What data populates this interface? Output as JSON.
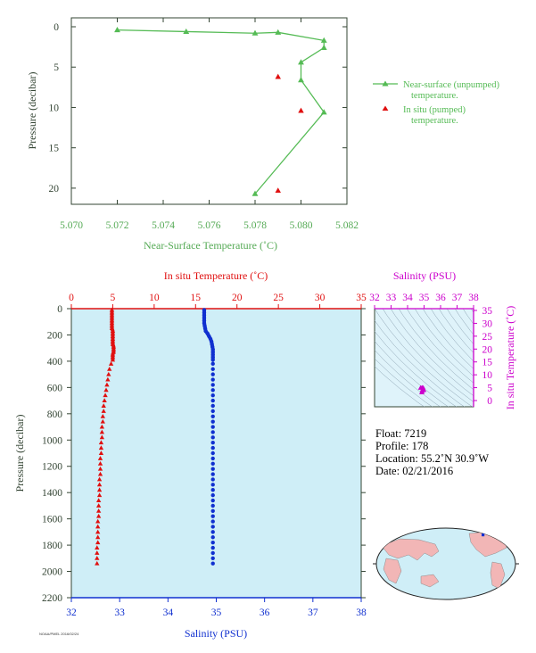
{
  "colors": {
    "green": "#55bb55",
    "red": "#e01010",
    "blue": "#1030d0",
    "magenta": "#cc00cc",
    "panel_fill": "#cfeef7",
    "ts_fill": "#dff3fa",
    "label_green": "#55aa55",
    "dark_green": "#334433",
    "land": "#f2b6b6"
  },
  "top_chart": {
    "ylabel": "Pressure (decibar)",
    "xlabel": "Near-Surface Temperature (˚C)",
    "xlim": [
      5.07,
      5.082
    ],
    "ylim": [
      0,
      22
    ],
    "xticks": [
      "5.070",
      "5.072",
      "5.074",
      "5.076",
      "5.078",
      "5.080",
      "5.082"
    ],
    "xtick_values": [
      5.07,
      5.072,
      5.074,
      5.076,
      5.078,
      5.08,
      5.082
    ],
    "yticks": [
      "0",
      "5",
      "10",
      "15",
      "20"
    ],
    "ytick_values": [
      0,
      5,
      10,
      15,
      20
    ],
    "legend": {
      "line_label_1": "Near-surface (unpumped)",
      "line_label_2": "temperature.",
      "point_label_1": "In situ (pumped)",
      "point_label_2": "temperature."
    }
  },
  "bottom_chart": {
    "ylabel": "Pressure (decibar)",
    "top_xlabel": "In situ Temperature (˚C)",
    "bottom_xlabel": "Salinity (PSU)",
    "temp_ticks": [
      "0",
      "5",
      "10",
      "15",
      "20",
      "25",
      "30",
      "35"
    ],
    "temp_values": [
      0,
      5,
      10,
      15,
      20,
      25,
      30,
      35
    ],
    "sal_ticks": [
      "32",
      "33",
      "34",
      "35",
      "36",
      "37",
      "38"
    ],
    "sal_values": [
      32,
      33,
      34,
      35,
      36,
      37,
      38
    ],
    "pres_ticks": [
      "0",
      "200",
      "400",
      "600",
      "800",
      "1000",
      "1200",
      "1400",
      "1600",
      "1800",
      "2000",
      "2200"
    ],
    "pres_values": [
      0,
      200,
      400,
      600,
      800,
      1000,
      1200,
      1400,
      1600,
      1800,
      2000,
      2200
    ],
    "tlim": [
      0,
      35
    ],
    "slim": [
      32,
      38
    ],
    "plim": [
      0,
      2200
    ]
  },
  "ts_chart": {
    "title": "Salinity (PSU)",
    "ylabel": "In situ Temperature (˚C)",
    "sal_ticks": [
      "32",
      "33",
      "34",
      "35",
      "36",
      "37",
      "38"
    ],
    "sal_values": [
      32,
      33,
      34,
      35,
      36,
      37,
      38
    ],
    "temp_ticks": [
      "0",
      "5",
      "10",
      "15",
      "20",
      "25",
      "30",
      "35"
    ],
    "temp_values": [
      0,
      5,
      10,
      15,
      20,
      25,
      30,
      35
    ],
    "slim": [
      32,
      38
    ],
    "tlim": [
      0,
      35
    ]
  },
  "info": {
    "float": "Float:  7219",
    "profile": "Profile:  178",
    "location": "Location:  55.2˚N  30.9˚W",
    "date": "Date:  02/21/2016"
  },
  "footer_note": "NOAA/PMEL 2016/02/24",
  "chart_data": [
    {
      "type": "line",
      "name": "Near-surface temperature profile",
      "x_unit": "˚C",
      "y_unit": "decibar",
      "series": [
        {
          "name": "Near-surface (unpumped) temperature.",
          "marker": "triangle-line",
          "points": [
            [
              5.072,
              0.4
            ],
            [
              5.075,
              0.6
            ],
            [
              5.078,
              0.8
            ],
            [
              5.079,
              0.7
            ],
            [
              5.081,
              1.7
            ],
            [
              5.081,
              2.6
            ],
            [
              5.08,
              4.4
            ],
            [
              5.08,
              6.6
            ],
            [
              5.081,
              10.6
            ],
            [
              5.078,
              20.7
            ]
          ]
        },
        {
          "name": "In situ (pumped) temperature.",
          "marker": "triangle",
          "points": [
            [
              5.079,
              6.2
            ],
            [
              5.08,
              10.4
            ],
            [
              5.079,
              20.3
            ]
          ]
        }
      ]
    },
    {
      "type": "scatter",
      "name": "In situ temperature vs pressure",
      "x_unit": "˚C",
      "y_unit": "decibar",
      "points": [
        [
          4.9,
          10
        ],
        [
          4.9,
          30
        ],
        [
          4.9,
          50
        ],
        [
          4.9,
          70
        ],
        [
          4.9,
          90
        ],
        [
          4.9,
          110
        ],
        [
          4.9,
          130
        ],
        [
          4.9,
          150
        ],
        [
          5.0,
          170
        ],
        [
          5.0,
          190
        ],
        [
          5.0,
          210
        ],
        [
          5.0,
          230
        ],
        [
          5.0,
          250
        ],
        [
          5.0,
          270
        ],
        [
          5.1,
          290
        ],
        [
          5.1,
          310
        ],
        [
          5.1,
          330
        ],
        [
          5.0,
          350
        ],
        [
          5.0,
          370
        ],
        [
          5.0,
          390
        ],
        [
          4.8,
          420
        ],
        [
          4.6,
          460
        ],
        [
          4.5,
          500
        ],
        [
          4.4,
          540
        ],
        [
          4.3,
          580
        ],
        [
          4.2,
          620
        ],
        [
          4.1,
          660
        ],
        [
          4.0,
          700
        ],
        [
          3.9,
          740
        ],
        [
          3.9,
          780
        ],
        [
          3.8,
          820
        ],
        [
          3.8,
          860
        ],
        [
          3.7,
          900
        ],
        [
          3.7,
          940
        ],
        [
          3.7,
          980
        ],
        [
          3.6,
          1020
        ],
        [
          3.6,
          1060
        ],
        [
          3.6,
          1100
        ],
        [
          3.5,
          1140
        ],
        [
          3.5,
          1180
        ],
        [
          3.5,
          1220
        ],
        [
          3.5,
          1260
        ],
        [
          3.4,
          1300
        ],
        [
          3.4,
          1340
        ],
        [
          3.4,
          1380
        ],
        [
          3.4,
          1420
        ],
        [
          3.3,
          1460
        ],
        [
          3.3,
          1500
        ],
        [
          3.3,
          1540
        ],
        [
          3.3,
          1580
        ],
        [
          3.2,
          1620
        ],
        [
          3.2,
          1660
        ],
        [
          3.2,
          1700
        ],
        [
          3.2,
          1740
        ],
        [
          3.2,
          1780
        ],
        [
          3.1,
          1820
        ],
        [
          3.1,
          1860
        ],
        [
          3.1,
          1900
        ],
        [
          3.1,
          1940
        ]
      ]
    },
    {
      "type": "scatter",
      "name": "Salinity vs pressure",
      "x_unit": "PSU",
      "y_unit": "decibar",
      "points": [
        [
          34.75,
          10
        ],
        [
          34.75,
          30
        ],
        [
          34.75,
          50
        ],
        [
          34.75,
          70
        ],
        [
          34.75,
          90
        ],
        [
          34.75,
          110
        ],
        [
          34.76,
          130
        ],
        [
          34.77,
          150
        ],
        [
          34.78,
          170
        ],
        [
          34.82,
          190
        ],
        [
          34.85,
          210
        ],
        [
          34.88,
          230
        ],
        [
          34.9,
          250
        ],
        [
          34.91,
          270
        ],
        [
          34.92,
          290
        ],
        [
          34.93,
          310
        ],
        [
          34.93,
          330
        ],
        [
          34.93,
          350
        ],
        [
          34.93,
          370
        ],
        [
          34.93,
          390
        ],
        [
          34.93,
          420
        ],
        [
          34.93,
          460
        ],
        [
          34.93,
          500
        ],
        [
          34.93,
          540
        ],
        [
          34.93,
          580
        ],
        [
          34.93,
          620
        ],
        [
          34.93,
          660
        ],
        [
          34.93,
          700
        ],
        [
          34.93,
          740
        ],
        [
          34.93,
          780
        ],
        [
          34.93,
          820
        ],
        [
          34.93,
          860
        ],
        [
          34.93,
          900
        ],
        [
          34.93,
          940
        ],
        [
          34.93,
          980
        ],
        [
          34.93,
          1020
        ],
        [
          34.93,
          1060
        ],
        [
          34.93,
          1100
        ],
        [
          34.93,
          1140
        ],
        [
          34.93,
          1180
        ],
        [
          34.93,
          1220
        ],
        [
          34.93,
          1260
        ],
        [
          34.93,
          1300
        ],
        [
          34.93,
          1340
        ],
        [
          34.93,
          1380
        ],
        [
          34.93,
          1420
        ],
        [
          34.93,
          1460
        ],
        [
          34.93,
          1500
        ],
        [
          34.93,
          1540
        ],
        [
          34.93,
          1580
        ],
        [
          34.93,
          1620
        ],
        [
          34.93,
          1660
        ],
        [
          34.93,
          1700
        ],
        [
          34.93,
          1740
        ],
        [
          34.93,
          1780
        ],
        [
          34.93,
          1820
        ],
        [
          34.93,
          1860
        ],
        [
          34.93,
          1900
        ],
        [
          34.93,
          1940
        ]
      ]
    },
    {
      "type": "scatter",
      "name": "T-S diagram",
      "x_unit": "PSU",
      "y_unit": "˚C",
      "points": [
        [
          34.85,
          3.1
        ],
        [
          34.87,
          3.5
        ],
        [
          34.88,
          3.9
        ],
        [
          34.9,
          4.2
        ],
        [
          34.92,
          4.5
        ],
        [
          34.93,
          4.8
        ],
        [
          34.95,
          5.0
        ],
        [
          34.88,
          5.1
        ],
        [
          34.8,
          5.0
        ],
        [
          34.78,
          4.9
        ],
        [
          34.9,
          3.3
        ],
        [
          35.0,
          4.0
        ]
      ]
    }
  ]
}
